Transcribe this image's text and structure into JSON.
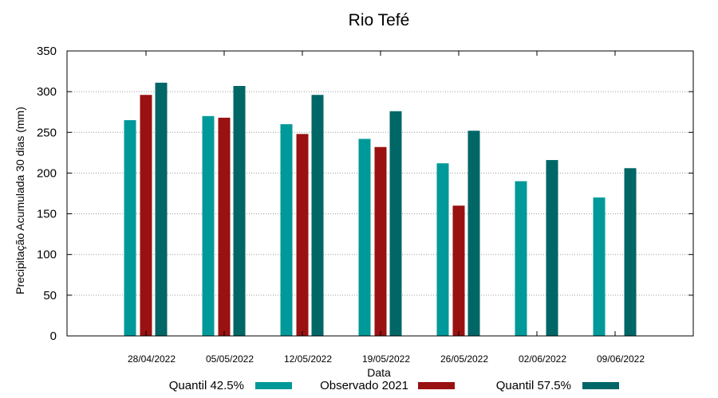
{
  "chart_data": {
    "type": "bar",
    "title": "Rio Tefé",
    "xlabel": "Data",
    "ylabel": "Precipitação Acumulada 30 dias (mm)",
    "ylim": [
      0,
      350
    ],
    "yticks": [
      0,
      50,
      100,
      150,
      200,
      250,
      300,
      350
    ],
    "grid": true,
    "legend_position": "bottom",
    "categories": [
      "28/04/2022",
      "05/05/2022",
      "12/05/2022",
      "19/05/2022",
      "26/05/2022",
      "02/06/2022",
      "09/06/2022"
    ],
    "series": [
      {
        "name": "Quantil 42.5%",
        "color": "#009999",
        "values": [
          265,
          270,
          260,
          242,
          212,
          190,
          170
        ]
      },
      {
        "name": "Observado 2021",
        "color": "#991111",
        "values": [
          296,
          268,
          248,
          232,
          160,
          null,
          null
        ]
      },
      {
        "name": "Quantil 57.5%",
        "color": "#006666",
        "values": [
          311,
          307,
          296,
          276,
          252,
          216,
          206
        ]
      }
    ]
  }
}
